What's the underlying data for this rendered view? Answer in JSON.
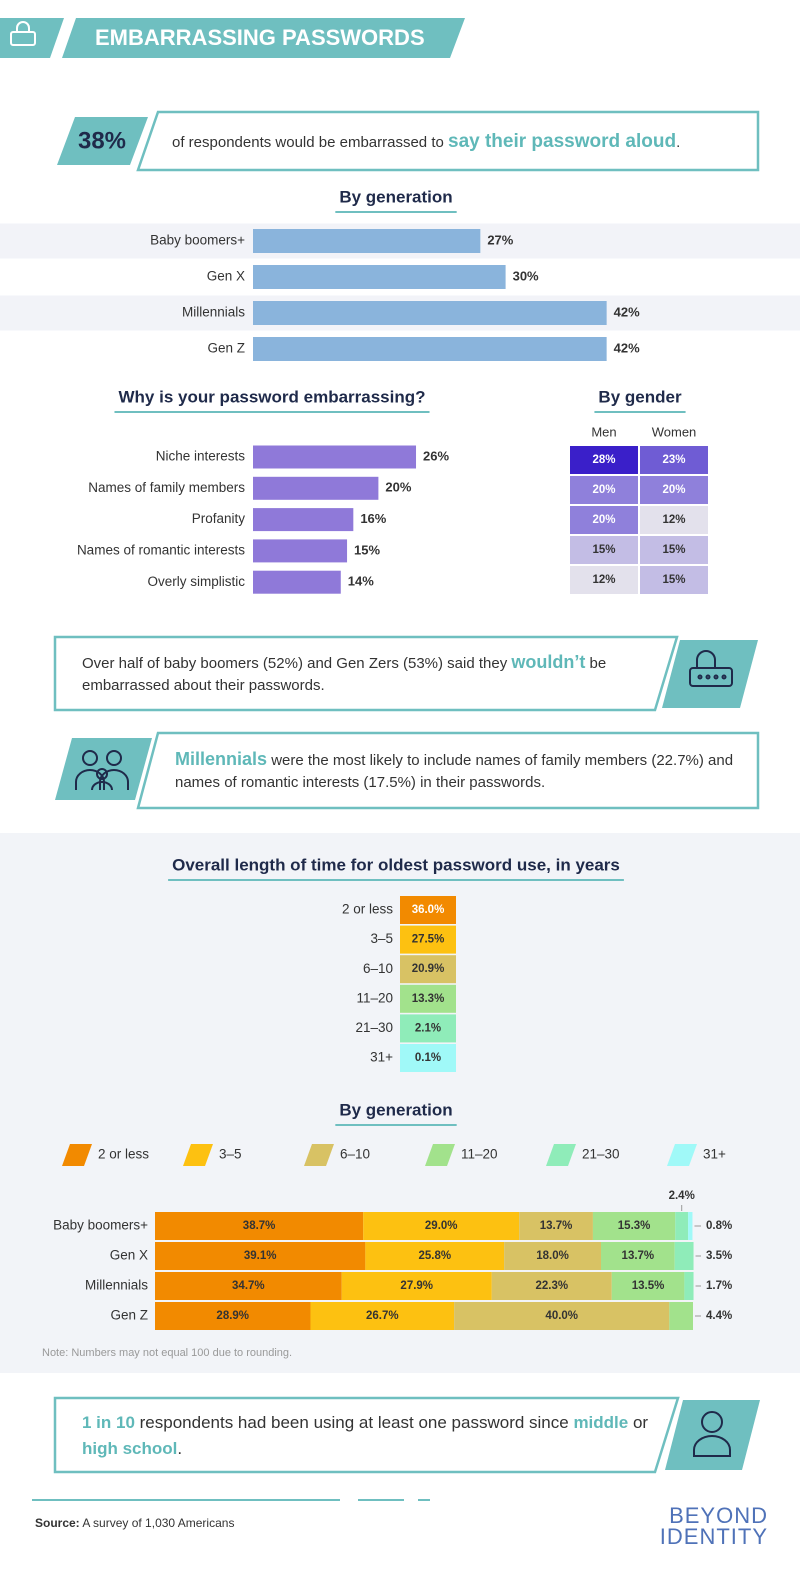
{
  "header": {
    "title": "EMBARRASSING PASSWORDS"
  },
  "stat": {
    "value": "38%",
    "parts": [
      {
        "text": "of respondents would be embarrassed to ",
        "highlight": false
      },
      {
        "text": "say their password aloud",
        "highlight": true
      },
      {
        "text": ".",
        "highlight": false
      }
    ]
  },
  "callouts": [
    {
      "parts": [
        {
          "text": "Over half of baby boomers (52%) and Gen Zers (53%) said they ",
          "highlight": false
        },
        {
          "text": "wouldn’t",
          "highlight": true
        },
        {
          "text": " be embarrassed about their passwords.",
          "highlight": false
        }
      ]
    },
    {
      "parts": [
        {
          "text": "Millennials",
          "highlight": true
        },
        {
          "text": " were the most likely to include names of family members (22.7%) and names of romantic interests (17.5%) in their passwords.",
          "highlight": false
        }
      ]
    },
    {
      "parts": [
        {
          "text": "1 in 10",
          "highlight": true
        },
        {
          "text": " respondents had been using at least one password since ",
          "highlight": false
        },
        {
          "text": "middle",
          "highlight": true
        },
        {
          "text": " or ",
          "highlight": false
        },
        {
          "text": "high school",
          "highlight": true
        },
        {
          "text": ".",
          "highlight": false
        }
      ]
    }
  ],
  "chart_data": [
    {
      "type": "hbar",
      "title": "By generation",
      "categories": [
        "Baby boomers+",
        "Gen X",
        "Millennials",
        "Gen Z"
      ],
      "values": [
        27,
        30,
        42,
        42
      ],
      "value_labels": [
        "27%",
        "30%",
        "42%",
        "42%"
      ],
      "color": "#8ab4dc"
    },
    {
      "type": "hbar",
      "title": "Why is your password embarrassing?",
      "categories": [
        "Niche interests",
        "Names of family members",
        "Profanity",
        "Names of romantic interests",
        "Overly simplistic"
      ],
      "values": [
        26,
        20,
        16,
        15,
        14
      ],
      "value_labels": [
        "26%",
        "20%",
        "16%",
        "15%",
        "14%"
      ],
      "color": "#8f79d9"
    },
    {
      "type": "heatmap",
      "title": "By gender",
      "series": [
        {
          "name": "Men",
          "values": [
            28,
            20,
            20,
            15,
            12
          ],
          "value_labels": [
            "28%",
            "20%",
            "20%",
            "15%",
            "12%"
          ]
        },
        {
          "name": "Women",
          "values": [
            23,
            20,
            12,
            15,
            15
          ],
          "value_labels": [
            "23%",
            "20%",
            "12%",
            "15%",
            "15%"
          ]
        }
      ],
      "colors": [
        "#e3e1ec",
        "#3a1fc9"
      ]
    },
    {
      "type": "color_table",
      "title": "Overall length of time for oldest password use, in years",
      "categories": [
        "2 or less",
        "3–5",
        "6–10",
        "11–20",
        "21–30",
        "31+"
      ],
      "values": [
        36.0,
        27.5,
        20.9,
        13.3,
        2.1,
        0.1
      ],
      "value_labels": [
        "36.0%",
        "27.5%",
        "20.9%",
        "13.3%",
        "2.1%",
        "0.1%"
      ],
      "colors": [
        "#f28a00",
        "#fdc111",
        "#d8c264",
        "#a2e28c",
        "#8fecb9",
        "#a0f9f8"
      ]
    },
    {
      "type": "stacked_hbar",
      "title": "By generation",
      "categories": [
        "Baby boomers+",
        "Gen X",
        "Millennials",
        "Gen Z"
      ],
      "series": [
        {
          "name": "2 or less",
          "color": "#f28a00",
          "values": [
            38.7,
            39.1,
            34.7,
            28.9
          ],
          "value_labels": [
            "38.7%",
            "39.1%",
            "34.7%",
            "28.9%"
          ]
        },
        {
          "name": "3–5",
          "color": "#fdc111",
          "values": [
            29.0,
            25.8,
            27.9,
            26.7
          ],
          "value_labels": [
            "29.0%",
            "25.8%",
            "27.9%",
            "26.7%"
          ]
        },
        {
          "name": "6–10",
          "color": "#d8c264",
          "values": [
            13.7,
            18.0,
            22.3,
            40.0
          ],
          "value_labels": [
            "13.7%",
            "18.0%",
            "22.3%",
            "40.0%"
          ]
        },
        {
          "name": "11–20",
          "color": "#a2e28c",
          "values": [
            15.3,
            13.7,
            13.5,
            4.4
          ],
          "value_labels": [
            "15.3%",
            "13.7%",
            "13.5%",
            "4.4%"
          ]
        },
        {
          "name": "21–30",
          "color": "#8fecb9",
          "values": [
            2.4,
            3.5,
            1.7,
            null
          ],
          "value_labels": [
            "2.4%",
            "3.5%",
            "1.7%",
            null
          ]
        },
        {
          "name": "31+",
          "color": "#a0f9f8",
          "values": [
            0.8,
            null,
            null,
            null
          ],
          "value_labels": [
            "0.8%",
            null,
            null,
            null
          ]
        }
      ],
      "note": "Note: Numbers may not equal 100 due to rounding."
    }
  ],
  "footer": {
    "source_label": "Source:",
    "source": " A survey of 1,030 Americans",
    "logo": [
      "BEYOND",
      "IDENTITY"
    ]
  }
}
